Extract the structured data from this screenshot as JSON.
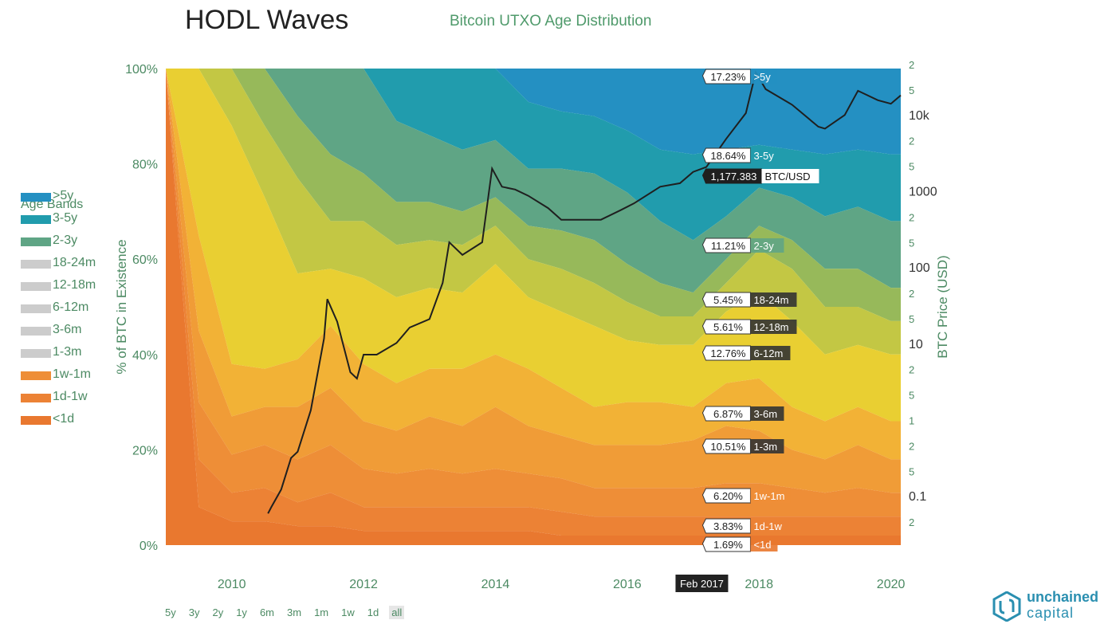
{
  "header": {
    "title": "HODL Waves",
    "subtitle": "Bitcoin UTXO Age Distribution"
  },
  "legend": {
    "title": "Age Bands"
  },
  "range_selector": {
    "options": [
      "5y",
      "3y",
      "2y",
      "1y",
      "6m",
      "3m",
      "1m",
      "1w",
      "1d",
      "all"
    ],
    "selected": "all"
  },
  "brand": {
    "line1": "unchained",
    "line2": "capital",
    "icon": "unchained-capital-logo-icon"
  },
  "cursor_label": "Feb 2017",
  "colors": {
    "band_lt1d": "#e9782f",
    "band_1d1w": "#ec8235",
    "band_1w1m": "#ee8e37",
    "band_1m3m": "#f09c37",
    "band_3m6m": "#f2b236",
    "band_6m12m": "#e9cf32",
    "band_12m18m": "#c3c744",
    "band_18m24m": "#97b95a",
    "band_2y3y": "#5fa585",
    "band_3y5y": "#219cad",
    "band_gt5y": "#2490c2",
    "price_line": "#1f1f1f",
    "axis_text": "#4c8a63"
  },
  "chart_data": {
    "type": "area",
    "stacking": "percent",
    "title": "HODL Waves",
    "subtitle": "Bitcoin UTXO Age Distribution",
    "ylabel": "% of BTC in Existence",
    "y2label": "BTC Price (USD)",
    "ylim": [
      0,
      100
    ],
    "y2_scale": "log",
    "y2lim": [
      0.02,
      20000
    ],
    "x": [
      2009.0,
      2009.5,
      2010.0,
      2010.5,
      2011.0,
      2011.5,
      2012.0,
      2012.5,
      2013.0,
      2013.5,
      2014.0,
      2014.5,
      2015.0,
      2015.5,
      2016.0,
      2016.5,
      2017.0,
      2017.5,
      2018.0,
      2018.5,
      2019.0,
      2019.5,
      2020.0,
      2020.15
    ],
    "x_ticks": [
      "2010",
      "2012",
      "2014",
      "2016",
      "2018",
      "2020"
    ],
    "y_ticks": [
      "0%",
      "20%",
      "40%",
      "60%",
      "80%",
      "100%"
    ],
    "y2_ticks": [
      "2",
      "0.1",
      "5",
      "2",
      "1",
      "5",
      "2",
      "10",
      "5",
      "2",
      "100",
      "5",
      "2",
      "1000",
      "5",
      "2",
      "10k",
      "5",
      "2"
    ],
    "legend_position": "left",
    "grid": false,
    "series": [
      {
        "name": "<1d",
        "color": "#e9782f",
        "values": [
          100,
          8,
          5,
          5,
          4,
          4,
          3,
          3,
          3,
          3,
          3,
          3,
          2,
          2,
          2,
          2,
          2,
          2,
          2,
          2,
          2,
          2,
          2,
          2
        ]
      },
      {
        "name": "1d-1w",
        "color": "#ec8235",
        "values": [
          0,
          10,
          6,
          7,
          5,
          7,
          5,
          5,
          5,
          5,
          5,
          5,
          5,
          4,
          4,
          4,
          4,
          4,
          4,
          4,
          4,
          4,
          4,
          4
        ]
      },
      {
        "name": "1w-1m",
        "color": "#ee8e37",
        "values": [
          0,
          12,
          8,
          9,
          9,
          10,
          8,
          7,
          8,
          7,
          8,
          7,
          7,
          6,
          6,
          6,
          6,
          7,
          7,
          6,
          5,
          6,
          5,
          5
        ]
      },
      {
        "name": "1m-3m",
        "color": "#f09c37",
        "values": [
          0,
          15,
          8,
          8,
          11,
          12,
          10,
          9,
          11,
          10,
          13,
          10,
          9,
          9,
          9,
          9,
          10,
          12,
          11,
          8,
          7,
          9,
          7,
          7
        ]
      },
      {
        "name": "3m-6m",
        "color": "#f2b236",
        "values": [
          0,
          20,
          11,
          8,
          10,
          13,
          12,
          10,
          10,
          12,
          11,
          12,
          10,
          8,
          9,
          9,
          7,
          9,
          11,
          9,
          8,
          8,
          8,
          8
        ]
      },
      {
        "name": "6m-12m",
        "color": "#e9cf32",
        "values": [
          0,
          35,
          50,
          36,
          18,
          12,
          18,
          18,
          17,
          16,
          19,
          15,
          16,
          17,
          13,
          12,
          13,
          15,
          18,
          18,
          14,
          13,
          14,
          14
        ]
      },
      {
        "name": "12m-18m",
        "color": "#c3c744",
        "values": [
          0,
          0,
          12,
          15,
          20,
          10,
          12,
          11,
          10,
          10,
          8,
          8,
          9,
          9,
          8,
          6,
          6,
          6,
          9,
          11,
          10,
          8,
          7,
          7
        ]
      },
      {
        "name": "18m-24m",
        "color": "#97b95a",
        "values": [
          0,
          0,
          0,
          12,
          13,
          14,
          10,
          9,
          8,
          7,
          6,
          7,
          8,
          9,
          8,
          7,
          5,
          5,
          5,
          6,
          8,
          8,
          7,
          7
        ]
      },
      {
        "name": "2-3y",
        "color": "#5fa585",
        "values": [
          0,
          0,
          0,
          0,
          10,
          18,
          22,
          17,
          14,
          13,
          12,
          12,
          13,
          14,
          15,
          13,
          11,
          9,
          8,
          9,
          11,
          13,
          14,
          14
        ]
      },
      {
        "name": "3-5y",
        "color": "#219cad",
        "values": [
          0,
          0,
          0,
          0,
          0,
          0,
          0,
          11,
          14,
          17,
          15,
          14,
          12,
          12,
          13,
          15,
          18,
          14,
          9,
          10,
          13,
          12,
          14,
          14
        ]
      },
      {
        "name": ">5y",
        "color": "#2490c2",
        "values": [
          0,
          0,
          0,
          0,
          0,
          0,
          0,
          0,
          0,
          0,
          0,
          7,
          9,
          10,
          13,
          17,
          18,
          17,
          16,
          17,
          18,
          17,
          18,
          18
        ]
      }
    ],
    "price_series": {
      "name": "BTC/USD",
      "x": [
        2010.55,
        2010.6,
        2010.75,
        2010.9,
        2011.0,
        2011.2,
        2011.4,
        2011.45,
        2011.6,
        2011.8,
        2011.9,
        2012.0,
        2012.2,
        2012.5,
        2012.7,
        2013.0,
        2013.2,
        2013.3,
        2013.5,
        2013.8,
        2013.95,
        2014.1,
        2014.3,
        2014.5,
        2014.8,
        2015.0,
        2015.3,
        2015.6,
        2015.9,
        2016.1,
        2016.5,
        2016.8,
        2017.0,
        2017.2,
        2017.5,
        2017.8,
        2017.95,
        2018.1,
        2018.5,
        2018.9,
        2019.0,
        2019.3,
        2019.5,
        2019.8,
        2020.0,
        2020.15
      ],
      "values": [
        0.05,
        0.06,
        0.1,
        0.25,
        0.3,
        1,
        8,
        25,
        13,
        3,
        2.5,
        5,
        5,
        7,
        11,
        14,
        40,
        130,
        90,
        130,
        1100,
        650,
        600,
        500,
        350,
        250,
        250,
        250,
        330,
        400,
        650,
        720,
        1000,
        1150,
        2600,
        5500,
        18000,
        11000,
        7000,
        3700,
        3500,
        5200,
        10500,
        8000,
        7200,
        9200
      ]
    },
    "annotations": [
      {
        "label": "17.23%",
        "band": ">5y"
      },
      {
        "label": "18.64%",
        "band": "3-5y"
      },
      {
        "label": "1,177.383",
        "band": "BTC/USD"
      },
      {
        "label": "11.21%",
        "band": "2-3y"
      },
      {
        "label": "5.45%",
        "band": "18-24m"
      },
      {
        "label": "5.61%",
        "band": "12-18m"
      },
      {
        "label": "12.76%",
        "band": "6-12m"
      },
      {
        "label": "6.87%",
        "band": "3-6m"
      },
      {
        "label": "10.51%",
        "band": "1-3m"
      },
      {
        "label": "6.20%",
        "band": "1w-1m"
      },
      {
        "label": "3.83%",
        "band": "1d-1w"
      },
      {
        "label": "1.69%",
        "band": "<1d"
      }
    ],
    "legend_entries": [
      ">5y",
      "3-5y",
      "2-3y",
      "18-24m",
      "12-18m",
      "6-12m",
      "3-6m",
      "1-3m",
      "1w-1m",
      "1d-1w",
      "<1d"
    ],
    "tooltip_x": 2017.12
  }
}
